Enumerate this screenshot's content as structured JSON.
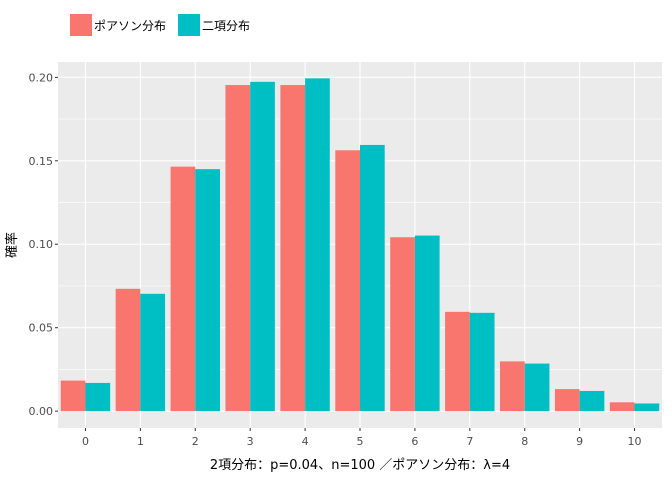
{
  "chart_data": {
    "type": "bar",
    "categories": [
      "0",
      "1",
      "2",
      "3",
      "4",
      "5",
      "6",
      "7",
      "8",
      "9",
      "10"
    ],
    "series": [
      {
        "name": "ポアソン分布",
        "color": "#F8766D",
        "values": [
          0.0183,
          0.0733,
          0.1465,
          0.1954,
          0.1954,
          0.1563,
          0.1042,
          0.0595,
          0.0298,
          0.0132,
          0.0053
        ]
      },
      {
        "name": "二項分布",
        "color": "#00BFC4",
        "values": [
          0.0169,
          0.0703,
          0.145,
          0.1973,
          0.1994,
          0.1595,
          0.1052,
          0.0589,
          0.0285,
          0.0121,
          0.0046
        ]
      }
    ],
    "xlabel": "2項分布：p=0.04、n=100 ／ポアソン分布：λ=4",
    "ylabel": "確率",
    "ylim": [
      -0.0101,
      0.2092
    ],
    "yticks": [
      0.0,
      0.05,
      0.1,
      0.15,
      0.2
    ],
    "ytick_labels": [
      "0.00",
      "0.05",
      "0.10",
      "0.15",
      "0.20"
    ],
    "grid": true,
    "legend_position": "top-left",
    "panel_background": "#EBEBEB",
    "grid_color": "#FFFFFF"
  }
}
